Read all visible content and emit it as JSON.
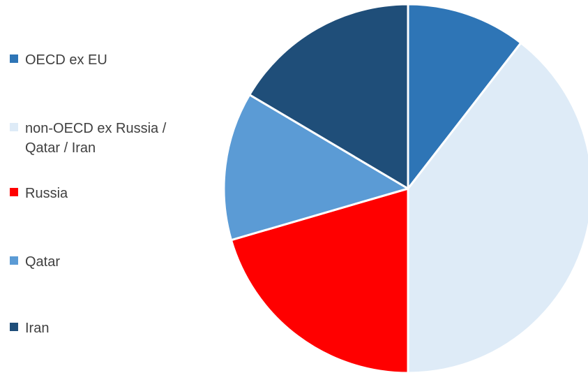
{
  "chart_data": {
    "type": "pie",
    "title": "",
    "legend_position": "left",
    "start_angle_deg": 0,
    "direction": "clockwise",
    "slices": [
      {
        "label": "OECD ex EU",
        "value": 10.5,
        "color": "#2E75B6"
      },
      {
        "label": "non-OECD ex Russia / Qatar / Iran",
        "value": 39.5,
        "color": "#DEEBF7"
      },
      {
        "label": "Russia",
        "value": 20.5,
        "color": "#FF0000"
      },
      {
        "label": "Qatar",
        "value": 13.0,
        "color": "#5B9BD5"
      },
      {
        "label": "Iran",
        "value": 16.5,
        "color": "#1F4E79"
      }
    ]
  }
}
